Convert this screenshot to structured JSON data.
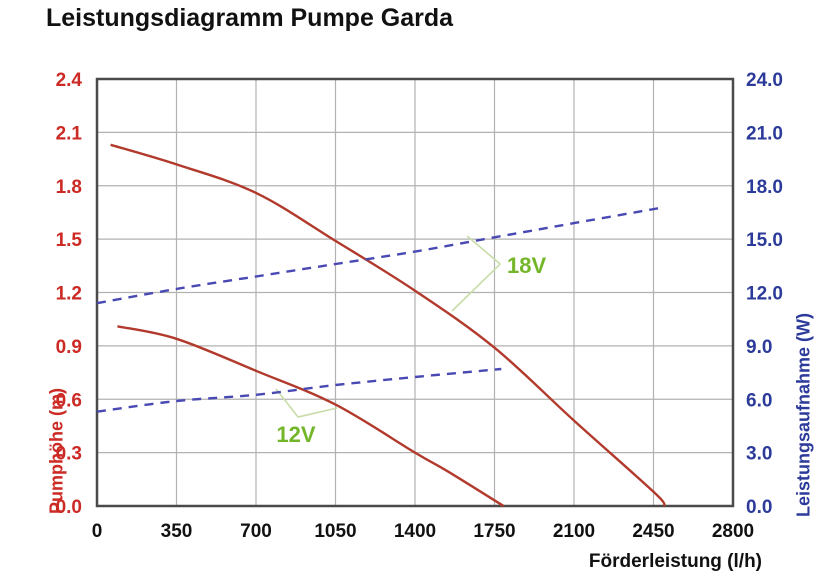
{
  "title": "Leistungsdiagramm Pumpe Garda",
  "colors": {
    "head_curve": "#b23a2c",
    "power_line": "#4949b4",
    "left_axis_text": "#cc2a24",
    "right_axis_text": "#2c3b9a",
    "annotation_text": "#74b629",
    "annotation_leader": "#c9dca7",
    "grid": "#b2b2b2",
    "plot_border": "#4a4a4a",
    "background": "#ffffff"
  },
  "chart_data": {
    "type": "line",
    "title": "Leistungsdiagramm Pumpe Garda",
    "xlabel": "Förderleistung (l/h)",
    "ylabel_left": "Pumphöhe (m)",
    "ylabel_right": "Leistungsaufnahme (W)",
    "xlim": [
      0,
      2800
    ],
    "ylim_left": [
      0,
      2.4
    ],
    "ylim_right": [
      0,
      24
    ],
    "grid": true,
    "xticks": [
      0,
      350,
      700,
      1050,
      1400,
      1750,
      2100,
      2450,
      2800
    ],
    "xtick_labels": [
      "0",
      "350",
      "700",
      "1050",
      "1400",
      "1750",
      "2100",
      "2450",
      "2800"
    ],
    "yticks_left": [
      0,
      0.3,
      0.6,
      0.9,
      1.2,
      1.5,
      1.8,
      2.1,
      2.4
    ],
    "ytick_labels_left": [
      "0.0",
      "0.3",
      "0.6",
      "0.9",
      "1.2",
      "1.5",
      "1.8",
      "2.1",
      "2.4"
    ],
    "yticks_right": [
      0,
      3,
      6,
      9,
      12,
      15,
      18,
      21,
      24
    ],
    "ytick_labels_right": [
      "0.0",
      "3.0",
      "6.0",
      "9.0",
      "12.0",
      "15.0",
      "18.0",
      "21.0",
      "24.0"
    ],
    "series": [
      {
        "name": "Pumphöhe 18V",
        "axis": "left",
        "style": "solid",
        "color": "#b23a2c",
        "points": [
          [
            60,
            2.03
          ],
          [
            350,
            1.92
          ],
          [
            700,
            1.76
          ],
          [
            1050,
            1.49
          ],
          [
            1400,
            1.21
          ],
          [
            1750,
            0.89
          ],
          [
            2100,
            0.48
          ],
          [
            2450,
            0.08
          ],
          [
            2500,
            0.0
          ]
        ]
      },
      {
        "name": "Pumphöhe 12V",
        "axis": "left",
        "style": "solid",
        "color": "#b23a2c",
        "points": [
          [
            90,
            1.01
          ],
          [
            350,
            0.94
          ],
          [
            700,
            0.76
          ],
          [
            1050,
            0.57
          ],
          [
            1400,
            0.3
          ],
          [
            1550,
            0.19
          ],
          [
            1790,
            0.0
          ]
        ]
      },
      {
        "name": "Leistungsaufnahme 18V",
        "axis": "right",
        "style": "dashed",
        "color": "#4949b4",
        "points": [
          [
            0,
            11.4
          ],
          [
            350,
            12.2
          ],
          [
            700,
            12.9
          ],
          [
            1050,
            13.6
          ],
          [
            1400,
            14.3
          ],
          [
            1750,
            15.1
          ],
          [
            2100,
            15.9
          ],
          [
            2500,
            16.8
          ]
        ]
      },
      {
        "name": "Leistungsaufnahme 12V",
        "axis": "right",
        "style": "dashed",
        "color": "#4949b4",
        "points": [
          [
            0,
            5.3
          ],
          [
            350,
            5.9
          ],
          [
            700,
            6.25
          ],
          [
            1050,
            6.8
          ],
          [
            1400,
            7.25
          ],
          [
            1780,
            7.7
          ]
        ]
      }
    ],
    "annotations": [
      {
        "label": "18V",
        "text_pos": [
          1805,
          1.354
        ],
        "text_anchor": "start",
        "vertex": [
          1775,
          1.36
        ],
        "leader_ends": [
          [
            1630,
            1.517
          ],
          [
            1563,
            1.096
          ]
        ]
      },
      {
        "label": "12V",
        "text_pos": [
          876,
          0.405
        ],
        "text_anchor": "middle",
        "vertex": [
          885,
          0.5
        ],
        "leader_ends": [
          [
            788,
            0.658
          ],
          [
            1057,
            0.551
          ]
        ]
      }
    ]
  }
}
